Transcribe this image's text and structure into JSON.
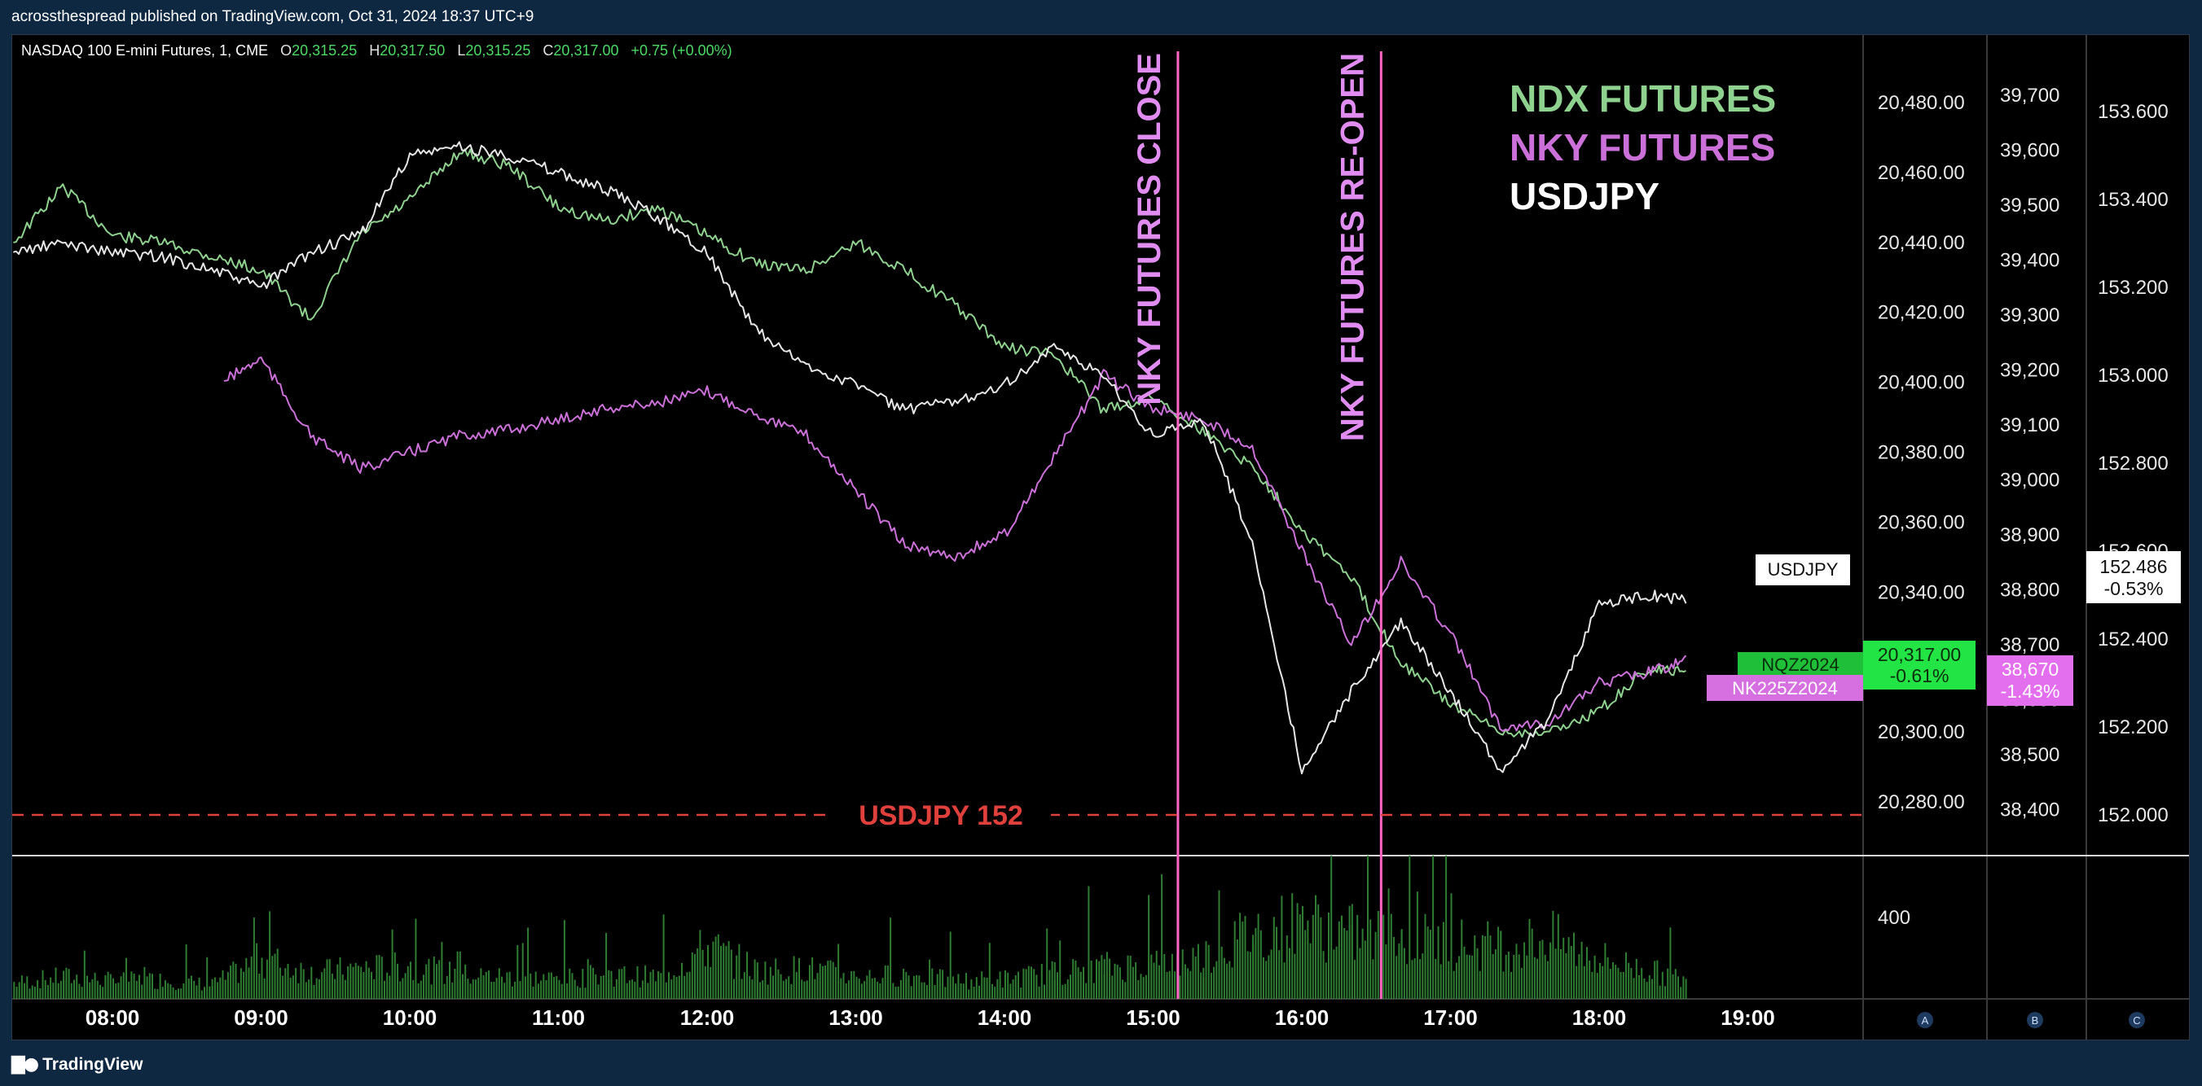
{
  "header": {
    "published": "acrossthespread published on TradingView.com, Oct 31, 2024 18:37 UTC+9"
  },
  "legend_bar": {
    "symbol": "NASDAQ 100 E-mini Futures, 1, CME",
    "o_label": "O",
    "o_value": "20,315.25",
    "h_label": "H",
    "h_value": "20,317.50",
    "l_label": "L",
    "l_value": "20,315.25",
    "c_label": "C",
    "c_value": "20,317.00",
    "change": "+0.75 (+0.00%)"
  },
  "footer": {
    "brand": "TradingView"
  },
  "colors": {
    "ndx": "#8fd18f",
    "nky": "#cc70d9",
    "usdjpy": "#e6e6e6",
    "vline": "#ff66c4",
    "hline": "#e0403c",
    "volume": "#2e7d32"
  },
  "chart_data": {
    "type": "line",
    "title": "",
    "legend": {
      "placement": "top-right",
      "entries": [
        "NDX FUTURES",
        "NKY FUTURES",
        "USDJPY"
      ]
    },
    "x_axis": {
      "ticks": [
        "08:00",
        "09:00",
        "10:00",
        "11:00",
        "12:00",
        "13:00",
        "14:00",
        "15:00",
        "16:00",
        "17:00",
        "18:00",
        "19:00"
      ]
    },
    "axes": {
      "A": {
        "ticks": [
          "20,480.00",
          "20,460.00",
          "20,440.00",
          "20,420.00",
          "20,400.00",
          "20,380.00",
          "20,360.00",
          "20,340.00",
          "20,320.00",
          "20,300.00",
          "20,280.00"
        ],
        "range": [
          20270,
          20490
        ],
        "label": "A"
      },
      "B": {
        "ticks": [
          "39,700",
          "39,600",
          "39,500",
          "39,400",
          "39,300",
          "39,200",
          "39,100",
          "39,000",
          "38,900",
          "38,800",
          "38,700",
          "38,600",
          "38,500",
          "38,400"
        ],
        "range": [
          38350,
          39750
        ],
        "label": "B"
      },
      "C": {
        "ticks": [
          "153.600",
          "153.400",
          "153.200",
          "153.000",
          "152.800",
          "152.600",
          "152.400",
          "152.200",
          "152.000"
        ],
        "range": [
          151.95,
          153.7
        ],
        "label": "C"
      }
    },
    "series": [
      {
        "name": "NDX FUTURES",
        "axis": "A",
        "ticker": "NQZ2024",
        "last": "20,317.00",
        "change": "-0.61%",
        "x": [
          "07:20",
          "07:40",
          "08:00",
          "08:20",
          "08:40",
          "09:00",
          "09:20",
          "09:40",
          "10:00",
          "10:20",
          "10:40",
          "11:00",
          "11:20",
          "11:40",
          "12:00",
          "12:20",
          "12:40",
          "13:00",
          "13:20",
          "13:40",
          "14:00",
          "14:20",
          "14:40",
          "15:00",
          "15:20",
          "15:40",
          "16:00",
          "16:20",
          "16:40",
          "17:00",
          "17:20",
          "17:40",
          "18:00",
          "18:20",
          "18:35"
        ],
        "values": [
          20440,
          20456,
          20442,
          20440,
          20436,
          20432,
          20418,
          20442,
          20452,
          20466,
          20462,
          20450,
          20446,
          20450,
          20442,
          20434,
          20432,
          20440,
          20432,
          20422,
          20410,
          20408,
          20392,
          20396,
          20386,
          20376,
          20358,
          20344,
          20320,
          20308,
          20300,
          20300,
          20306,
          20318,
          20317
        ]
      },
      {
        "name": "NKY FUTURES",
        "axis": "B",
        "ticker": "NK225Z2024",
        "last": "38,670",
        "change": "-1.43%",
        "x": [
          "08:45",
          "09:00",
          "09:20",
          "09:40",
          "10:00",
          "10:20",
          "10:40",
          "11:00",
          "11:20",
          "11:40",
          "12:00",
          "12:20",
          "12:40",
          "13:00",
          "13:20",
          "13:40",
          "14:00",
          "14:20",
          "14:40",
          "15:00",
          "15:20",
          "15:40",
          "16:00",
          "16:20",
          "16:40",
          "17:00",
          "17:20",
          "17:40",
          "18:00",
          "18:20",
          "18:35"
        ],
        "values": [
          39180,
          39220,
          39080,
          39020,
          39050,
          39080,
          39090,
          39110,
          39130,
          39140,
          39160,
          39120,
          39080,
          38980,
          38880,
          38860,
          38900,
          39040,
          39190,
          39130,
          39110,
          39060,
          38870,
          38700,
          38850,
          38720,
          38550,
          38560,
          38630,
          38650,
          38670
        ]
      },
      {
        "name": "USDJPY",
        "axis": "C",
        "last": "152.486",
        "change": "-0.53%",
        "x": [
          "07:20",
          "07:40",
          "08:00",
          "08:20",
          "08:40",
          "09:00",
          "09:20",
          "09:40",
          "10:00",
          "10:20",
          "10:40",
          "11:00",
          "11:20",
          "11:40",
          "12:00",
          "12:20",
          "12:40",
          "13:00",
          "13:20",
          "13:40",
          "14:00",
          "14:20",
          "14:40",
          "15:00",
          "15:20",
          "15:40",
          "16:00",
          "16:20",
          "16:40",
          "17:00",
          "17:20",
          "17:40",
          "18:00",
          "18:20",
          "18:35"
        ],
        "values": [
          153.28,
          153.3,
          153.28,
          153.27,
          153.24,
          153.2,
          153.28,
          153.32,
          153.5,
          153.52,
          153.5,
          153.46,
          153.42,
          153.36,
          153.28,
          153.1,
          153.02,
          152.98,
          152.92,
          152.94,
          152.98,
          153.06,
          153.0,
          152.86,
          152.9,
          152.62,
          152.1,
          152.28,
          152.44,
          152.28,
          152.1,
          152.22,
          152.48,
          152.5,
          152.486
        ]
      }
    ],
    "volume": {
      "axis_tick": "400",
      "x": [
        "07:20",
        "07:40",
        "08:00",
        "08:20",
        "08:40",
        "09:00",
        "09:20",
        "09:40",
        "10:00",
        "10:20",
        "10:40",
        "11:00",
        "11:20",
        "11:40",
        "12:00",
        "12:20",
        "12:40",
        "13:00",
        "13:20",
        "13:40",
        "14:00",
        "14:20",
        "14:40",
        "15:00",
        "15:20",
        "15:40",
        "16:00",
        "16:20",
        "16:40",
        "17:00",
        "17:20",
        "17:40",
        "18:00",
        "18:20",
        "18:35"
      ],
      "values": [
        80,
        110,
        90,
        95,
        70,
        200,
        130,
        150,
        160,
        120,
        110,
        100,
        120,
        110,
        260,
        140,
        150,
        110,
        120,
        90,
        100,
        130,
        160,
        170,
        210,
        330,
        380,
        320,
        300,
        280,
        260,
        300,
        200,
        140,
        90
      ]
    },
    "annotations": [
      {
        "type": "vline",
        "time": "15:10",
        "text": "NKY FUTURES CLOSE"
      },
      {
        "type": "vline",
        "time": "16:32",
        "text": "NKY FUTURES RE-OPEN"
      },
      {
        "type": "hline",
        "axis": "C",
        "value": 152.0,
        "text": "USDJPY 152"
      }
    ],
    "grid": false
  }
}
